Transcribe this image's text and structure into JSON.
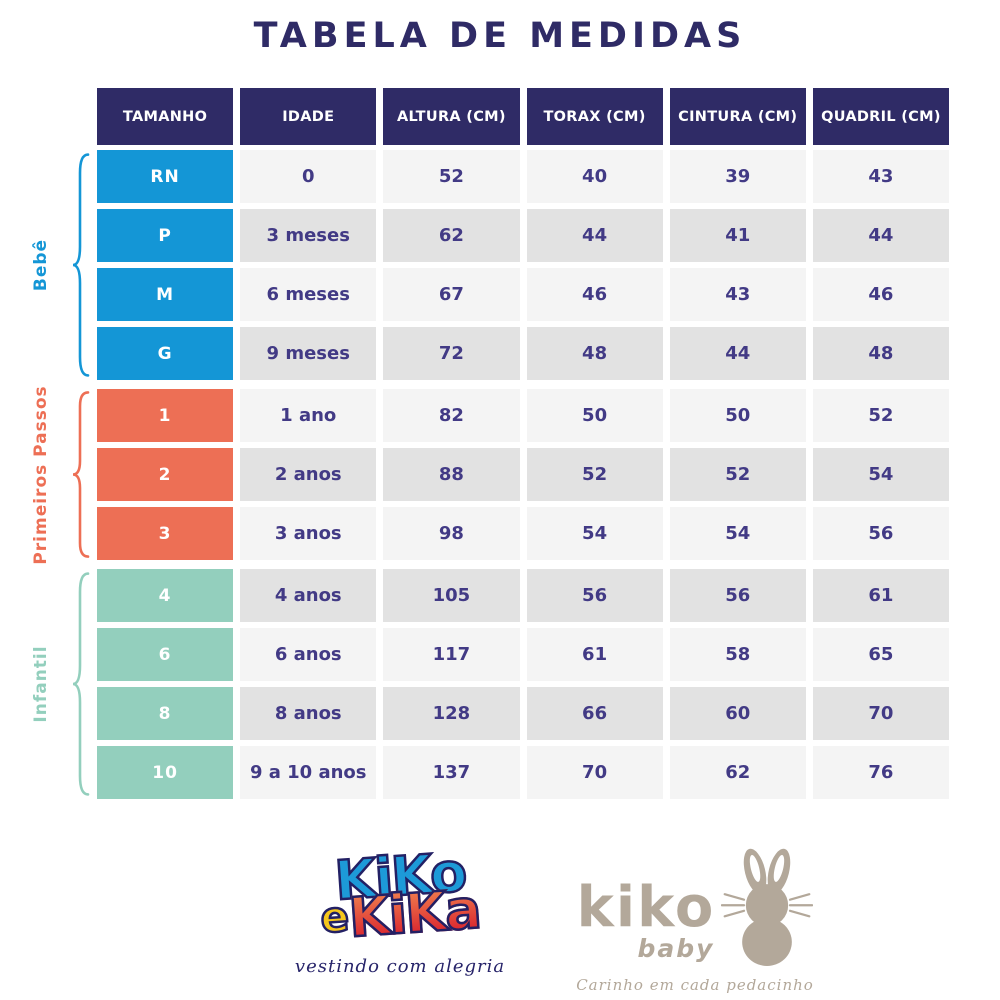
{
  "title": "TABELA DE MEDIDAS",
  "colors": {
    "navy": "#2f2b66",
    "cell_text": "#423a85",
    "bebe_blue": "#1496d6",
    "primeiros_passos_coral": "#ed6f55",
    "infantil_mint": "#93cfbd",
    "row_light": "#f4f4f4",
    "row_dark": "#e2e2e2",
    "logo_blue": "#1d9ad8",
    "logo_yellow": "#f6c61c",
    "logo_red_gradient_top": "#f0814f",
    "logo_red_gradient_bottom": "#d9232e",
    "logo_outline_navy": "#232064",
    "baby_taupe": "#b3a89a"
  },
  "table": {
    "headers": [
      "TAMANHO",
      "IDADE",
      "ALTURA (CM)",
      "TORAX (CM)",
      "CINTURA (CM)",
      "QUADRIL (CM)"
    ],
    "groups": [
      {
        "label": "Bebê",
        "slug": "bebe",
        "color": "#1496d6",
        "rows": [
          {
            "tamanho": "RN",
            "idade": "0",
            "altura": "52",
            "torax": "40",
            "cintura": "39",
            "quadril": "43"
          },
          {
            "tamanho": "P",
            "idade": "3 meses",
            "altura": "62",
            "torax": "44",
            "cintura": "41",
            "quadril": "44"
          },
          {
            "tamanho": "M",
            "idade": "6 meses",
            "altura": "67",
            "torax": "46",
            "cintura": "43",
            "quadril": "46"
          },
          {
            "tamanho": "G",
            "idade": "9 meses",
            "altura": "72",
            "torax": "48",
            "cintura": "44",
            "quadril": "48"
          }
        ]
      },
      {
        "label": "Primeiros Passos",
        "slug": "primeiros-passos",
        "color": "#ed6f55",
        "rows": [
          {
            "tamanho": "1",
            "idade": "1 ano",
            "altura": "82",
            "torax": "50",
            "cintura": "50",
            "quadril": "52"
          },
          {
            "tamanho": "2",
            "idade": "2 anos",
            "altura": "88",
            "torax": "52",
            "cintura": "52",
            "quadril": "54"
          },
          {
            "tamanho": "3",
            "idade": "3 anos",
            "altura": "98",
            "torax": "54",
            "cintura": "54",
            "quadril": "56"
          }
        ]
      },
      {
        "label": "Infantil",
        "slug": "infantil",
        "color": "#93cfbd",
        "rows": [
          {
            "tamanho": "4",
            "idade": "4 anos",
            "altura": "105",
            "torax": "56",
            "cintura": "56",
            "quadril": "61"
          },
          {
            "tamanho": "6",
            "idade": "6 anos",
            "altura": "117",
            "torax": "61",
            "cintura": "58",
            "quadril": "65"
          },
          {
            "tamanho": "8",
            "idade": "8 anos",
            "altura": "128",
            "torax": "66",
            "cintura": "60",
            "quadril": "70"
          },
          {
            "tamanho": "10",
            "idade": "9 a 10 anos",
            "altura": "137",
            "torax": "70",
            "cintura": "62",
            "quadril": "76"
          }
        ]
      }
    ]
  },
  "chart_data": {
    "type": "table",
    "title": "TABELA DE MEDIDAS",
    "columns": [
      "TAMANHO",
      "IDADE",
      "ALTURA (CM)",
      "TORAX (CM)",
      "CINTURA (CM)",
      "QUADRIL (CM)"
    ],
    "row_groups": [
      {
        "group": "Bebê",
        "rows": [
          [
            "RN",
            "0",
            52,
            40,
            39,
            43
          ],
          [
            "P",
            "3 meses",
            62,
            44,
            41,
            44
          ],
          [
            "M",
            "6 meses",
            67,
            46,
            43,
            46
          ],
          [
            "G",
            "9 meses",
            72,
            48,
            44,
            48
          ]
        ]
      },
      {
        "group": "Primeiros Passos",
        "rows": [
          [
            "1",
            "1 ano",
            82,
            50,
            50,
            52
          ],
          [
            "2",
            "2 anos",
            88,
            52,
            52,
            54
          ],
          [
            "3",
            "3 anos",
            98,
            54,
            54,
            56
          ]
        ]
      },
      {
        "group": "Infantil",
        "rows": [
          [
            "4",
            "4 anos",
            105,
            56,
            56,
            61
          ],
          [
            "6",
            "6 anos",
            117,
            61,
            58,
            65
          ],
          [
            "8",
            "8 anos",
            128,
            66,
            60,
            70
          ],
          [
            "10",
            "9 a 10 anos",
            137,
            70,
            62,
            76
          ]
        ]
      }
    ]
  },
  "footer": {
    "kiko_e_kika": {
      "word_kiko": "KiKo",
      "word_e": "e",
      "word_kika": "KiKa",
      "tagline": "vestindo com alegria"
    },
    "kiko_baby": {
      "name": "kiko",
      "sub": "baby",
      "tagline": "Carinho em cada pedacinho"
    }
  }
}
